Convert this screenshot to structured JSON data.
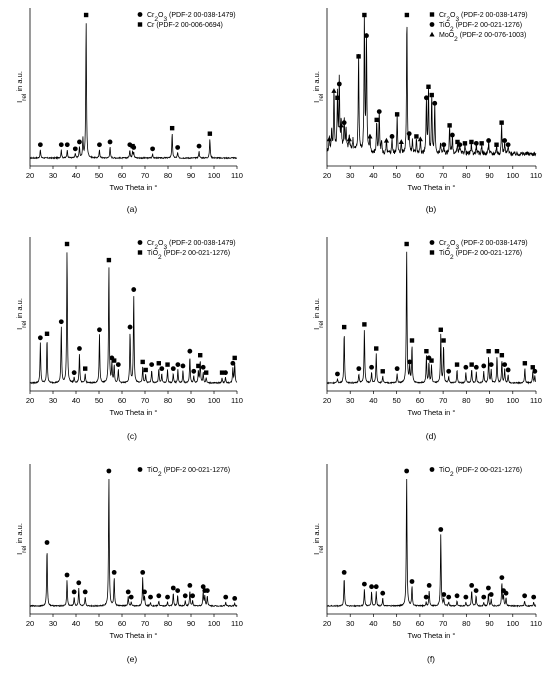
{
  "chart_data": [
    {
      "type": "line",
      "panel_label": "(a)",
      "xlabel": "Two Theta in °",
      "ylabel_main": "I",
      "ylabel_sub": "rel",
      "ylabel_tail": " in a.u.",
      "xlim": [
        20,
        110
      ],
      "xticks": [
        20,
        30,
        40,
        50,
        60,
        70,
        80,
        90,
        100,
        110
      ],
      "ylim": [
        0,
        100
      ],
      "legend": [
        {
          "marker": "circle",
          "pre": "Cr",
          "sub1": "2",
          "mid": "O",
          "sub2": "3",
          "post": " (PDF-2 00-038-1479)"
        },
        {
          "marker": "square",
          "pre": "Cr (PDF-2 00-006-0694)",
          "sub1": "",
          "mid": "",
          "sub2": "",
          "post": ""
        }
      ],
      "peaks": [
        {
          "x": 24.5,
          "y": 6,
          "m": "circle"
        },
        {
          "x": 33.6,
          "y": 6,
          "m": "circle"
        },
        {
          "x": 36.2,
          "y": 6,
          "m": "circle"
        },
        {
          "x": 39.7,
          "y": 3,
          "m": "circle"
        },
        {
          "x": 41.5,
          "y": 8,
          "m": "circle"
        },
        {
          "x": 43.0,
          "y": 14,
          "m": "none"
        },
        {
          "x": 44.4,
          "y": 100,
          "m": "square"
        },
        {
          "x": 50.2,
          "y": 6,
          "m": "circle"
        },
        {
          "x": 54.8,
          "y": 8,
          "m": "circle"
        },
        {
          "x": 63.4,
          "y": 6,
          "m": "circle"
        },
        {
          "x": 64.6,
          "y": 5,
          "m": "square"
        },
        {
          "x": 65.1,
          "y": 4,
          "m": "circle"
        },
        {
          "x": 73.3,
          "y": 3,
          "m": "circle"
        },
        {
          "x": 81.8,
          "y": 18,
          "m": "square"
        },
        {
          "x": 84.2,
          "y": 4,
          "m": "circle"
        },
        {
          "x": 93.5,
          "y": 5,
          "m": "circle"
        },
        {
          "x": 98.2,
          "y": 14,
          "m": "square"
        }
      ]
    },
    {
      "type": "line",
      "panel_label": "(b)",
      "xlabel": "Two Theta in °",
      "ylabel_main": "I",
      "ylabel_sub": "rel",
      "ylabel_tail": " in a.u.",
      "xlim": [
        20,
        110
      ],
      "xticks": [
        20,
        30,
        40,
        50,
        60,
        70,
        80,
        90,
        100,
        110
      ],
      "ylim": [
        0,
        100
      ],
      "legend": [
        {
          "marker": "square",
          "pre": "Cr",
          "sub1": "2",
          "mid": "O",
          "sub2": "3",
          "post": " (PDF-2 00-038-1479)"
        },
        {
          "marker": "circle",
          "pre": "TiO",
          "sub1": "2",
          "mid": "",
          "sub2": "",
          "post": " (PDF-2 00-021-1276)"
        },
        {
          "marker": "triangle",
          "pre": "MoO",
          "sub1": "2",
          "mid": "",
          "sub2": "",
          "post": " (PDF-2 00-076-1003)"
        }
      ],
      "peaks": [
        {
          "x": 21.0,
          "y": 10,
          "m": "triangle"
        },
        {
          "x": 22.0,
          "y": 14,
          "m": "none"
        },
        {
          "x": 23.0,
          "y": 45,
          "m": "triangle"
        },
        {
          "x": 24.5,
          "y": 40,
          "m": "square"
        },
        {
          "x": 25.3,
          "y": 50,
          "m": "circle"
        },
        {
          "x": 26.1,
          "y": 20,
          "m": "triangle"
        },
        {
          "x": 27.4,
          "y": 22,
          "m": "circle"
        },
        {
          "x": 28.2,
          "y": 14,
          "m": "none"
        },
        {
          "x": 29.6,
          "y": 10,
          "m": "triangle"
        },
        {
          "x": 31.2,
          "y": 8,
          "m": "none"
        },
        {
          "x": 33.6,
          "y": 70,
          "m": "square"
        },
        {
          "x": 36.1,
          "y": 100,
          "m": "square"
        },
        {
          "x": 37.0,
          "y": 85,
          "m": "circle"
        },
        {
          "x": 38.5,
          "y": 12,
          "m": "triangle"
        },
        {
          "x": 41.4,
          "y": 24,
          "m": "square"
        },
        {
          "x": 42.5,
          "y": 30,
          "m": "circle"
        },
        {
          "x": 43.5,
          "y": 10,
          "m": "none"
        },
        {
          "x": 45.6,
          "y": 9,
          "m": "triangle"
        },
        {
          "x": 48.0,
          "y": 12,
          "m": "circle"
        },
        {
          "x": 50.2,
          "y": 28,
          "m": "square"
        },
        {
          "x": 52.0,
          "y": 8,
          "m": "triangle"
        },
        {
          "x": 54.4,
          "y": 100,
          "m": "square"
        },
        {
          "x": 55.4,
          "y": 14,
          "m": "circle"
        },
        {
          "x": 56.8,
          "y": 10,
          "m": "none"
        },
        {
          "x": 58.5,
          "y": 12,
          "m": "square"
        },
        {
          "x": 60.2,
          "y": 10,
          "m": "triangle"
        },
        {
          "x": 62.8,
          "y": 40,
          "m": "circle"
        },
        {
          "x": 63.7,
          "y": 48,
          "m": "square"
        },
        {
          "x": 65.1,
          "y": 42,
          "m": "square"
        },
        {
          "x": 66.4,
          "y": 36,
          "m": "circle"
        },
        {
          "x": 68.9,
          "y": 8,
          "m": "none"
        },
        {
          "x": 70.3,
          "y": 6,
          "m": "circle"
        },
        {
          "x": 72.8,
          "y": 20,
          "m": "square"
        },
        {
          "x": 74.0,
          "y": 13,
          "m": "circle"
        },
        {
          "x": 76.2,
          "y": 8,
          "m": "square"
        },
        {
          "x": 77.2,
          "y": 6,
          "m": "circle"
        },
        {
          "x": 79.4,
          "y": 7,
          "m": "square"
        },
        {
          "x": 82.2,
          "y": 8,
          "m": "square"
        },
        {
          "x": 84.3,
          "y": 7,
          "m": "circle"
        },
        {
          "x": 86.6,
          "y": 7,
          "m": "square"
        },
        {
          "x": 89.6,
          "y": 9,
          "m": "circle"
        },
        {
          "x": 93.0,
          "y": 6,
          "m": "square"
        },
        {
          "x": 95.2,
          "y": 22,
          "m": "square"
        },
        {
          "x": 96.5,
          "y": 9,
          "m": "circle"
        },
        {
          "x": 98.0,
          "y": 6,
          "m": "circle"
        }
      ]
    },
    {
      "type": "line",
      "panel_label": "(c)",
      "xlabel": "Two Theta in °",
      "ylabel_main": "I",
      "ylabel_sub": "rel",
      "ylabel_tail": " in a.u.",
      "xlim": [
        20,
        110
      ],
      "xticks": [
        20,
        30,
        40,
        50,
        60,
        70,
        80,
        90,
        100,
        110
      ],
      "ylim": [
        0,
        100
      ],
      "legend": [
        {
          "marker": "circle",
          "pre": "Cr",
          "sub1": "2",
          "mid": "O",
          "sub2": "3",
          "post": " (PDF-2 00-038-1479)"
        },
        {
          "marker": "square",
          "pre": "TiO",
          "sub1": "2",
          "mid": "",
          "sub2": "",
          "post": " (PDF-2 00-021-1276)"
        }
      ],
      "peaks": [
        {
          "x": 24.5,
          "y": 30,
          "m": "circle"
        },
        {
          "x": 27.4,
          "y": 33,
          "m": "square"
        },
        {
          "x": 33.6,
          "y": 42,
          "m": "circle"
        },
        {
          "x": 36.1,
          "y": 100,
          "m": "square"
        },
        {
          "x": 39.2,
          "y": 4,
          "m": "circle"
        },
        {
          "x": 41.5,
          "y": 22,
          "m": "circle"
        },
        {
          "x": 44.0,
          "y": 7,
          "m": "square"
        },
        {
          "x": 50.2,
          "y": 36,
          "m": "circle"
        },
        {
          "x": 54.3,
          "y": 88,
          "m": "square"
        },
        {
          "x": 55.6,
          "y": 15,
          "m": "circle"
        },
        {
          "x": 56.6,
          "y": 13,
          "m": "square"
        },
        {
          "x": 58.4,
          "y": 10,
          "m": "circle"
        },
        {
          "x": 63.5,
          "y": 38,
          "m": "circle"
        },
        {
          "x": 65.1,
          "y": 66,
          "m": "circle"
        },
        {
          "x": 69.0,
          "y": 12,
          "m": "square"
        },
        {
          "x": 70.3,
          "y": 6,
          "m": "square"
        },
        {
          "x": 72.9,
          "y": 10,
          "m": "circle"
        },
        {
          "x": 76.0,
          "y": 11,
          "m": "square"
        },
        {
          "x": 77.3,
          "y": 7,
          "m": "circle"
        },
        {
          "x": 79.8,
          "y": 10,
          "m": "square"
        },
        {
          "x": 82.3,
          "y": 7,
          "m": "circle"
        },
        {
          "x": 84.3,
          "y": 10,
          "m": "circle"
        },
        {
          "x": 86.5,
          "y": 9,
          "m": "circle"
        },
        {
          "x": 89.5,
          "y": 20,
          "m": "circle"
        },
        {
          "x": 91.2,
          "y": 5,
          "m": "circle"
        },
        {
          "x": 93.2,
          "y": 9,
          "m": "square"
        },
        {
          "x": 94.0,
          "y": 17,
          "m": "square"
        },
        {
          "x": 95.3,
          "y": 8,
          "m": "circle"
        },
        {
          "x": 96.6,
          "y": 4,
          "m": "square"
        },
        {
          "x": 103.5,
          "y": 4,
          "m": "square"
        },
        {
          "x": 105.0,
          "y": 4,
          "m": "circle"
        },
        {
          "x": 108.2,
          "y": 11,
          "m": "circle"
        },
        {
          "x": 109.0,
          "y": 15,
          "m": "square"
        }
      ]
    },
    {
      "type": "line",
      "panel_label": "(d)",
      "xlabel": "Two Theta in °",
      "ylabel_main": "I",
      "ylabel_sub": "rel",
      "ylabel_tail": " in a.u.",
      "xlim": [
        20,
        110
      ],
      "xticks": [
        20,
        30,
        40,
        50,
        60,
        70,
        80,
        90,
        100,
        110
      ],
      "ylim": [
        0,
        100
      ],
      "legend": [
        {
          "marker": "circle",
          "pre": "Cr",
          "sub1": "2",
          "mid": "O",
          "sub2": "3",
          "post": " (PDF-2 00-038-1479)"
        },
        {
          "marker": "square",
          "pre": "TiO",
          "sub1": "2",
          "mid": "",
          "sub2": "",
          "post": " (PDF-2 00-021-1276)"
        }
      ],
      "peaks": [
        {
          "x": 24.5,
          "y": 3,
          "m": "circle"
        },
        {
          "x": 27.4,
          "y": 38,
          "m": "square"
        },
        {
          "x": 33.7,
          "y": 7,
          "m": "circle"
        },
        {
          "x": 36.1,
          "y": 40,
          "m": "square"
        },
        {
          "x": 39.2,
          "y": 8,
          "m": "circle"
        },
        {
          "x": 41.2,
          "y": 22,
          "m": "square"
        },
        {
          "x": 44.0,
          "y": 5,
          "m": "square"
        },
        {
          "x": 50.2,
          "y": 7,
          "m": "circle"
        },
        {
          "x": 54.3,
          "y": 100,
          "m": "square"
        },
        {
          "x": 55.6,
          "y": 12,
          "m": "circle"
        },
        {
          "x": 56.6,
          "y": 28,
          "m": "square"
        },
        {
          "x": 62.8,
          "y": 20,
          "m": "square"
        },
        {
          "x": 63.9,
          "y": 15,
          "m": "circle"
        },
        {
          "x": 65.0,
          "y": 13,
          "m": "square"
        },
        {
          "x": 69.0,
          "y": 36,
          "m": "square"
        },
        {
          "x": 70.2,
          "y": 28,
          "m": "square"
        },
        {
          "x": 72.4,
          "y": 5,
          "m": "circle"
        },
        {
          "x": 76.0,
          "y": 10,
          "m": "square"
        },
        {
          "x": 79.8,
          "y": 8,
          "m": "circle"
        },
        {
          "x": 82.3,
          "y": 10,
          "m": "square"
        },
        {
          "x": 84.3,
          "y": 8,
          "m": "circle"
        },
        {
          "x": 87.5,
          "y": 9,
          "m": "circle"
        },
        {
          "x": 89.6,
          "y": 20,
          "m": "square"
        },
        {
          "x": 90.7,
          "y": 10,
          "m": "circle"
        },
        {
          "x": 93.2,
          "y": 20,
          "m": "square"
        },
        {
          "x": 95.3,
          "y": 17,
          "m": "square"
        },
        {
          "x": 96.5,
          "y": 10,
          "m": "circle"
        },
        {
          "x": 98.0,
          "y": 6,
          "m": "circle"
        },
        {
          "x": 105.2,
          "y": 11,
          "m": "square"
        },
        {
          "x": 108.6,
          "y": 8,
          "m": "square"
        },
        {
          "x": 109.5,
          "y": 5,
          "m": "circle"
        }
      ]
    },
    {
      "type": "line",
      "panel_label": "(e)",
      "xlabel": "Two Theta in °",
      "ylabel_main": "I",
      "ylabel_sub": "rel",
      "ylabel_tail": " in a.u.",
      "xlim": [
        20,
        110
      ],
      "xticks": [
        20,
        30,
        40,
        50,
        60,
        70,
        80,
        90,
        100,
        110
      ],
      "ylim": [
        0,
        100
      ],
      "legend": [
        {
          "marker": "circle",
          "pre": "TiO",
          "sub1": "2",
          "mid": "",
          "sub2": "",
          "post": " (PDF-2 00-021-1276)"
        }
      ],
      "peaks": [
        {
          "x": 27.4,
          "y": 45,
          "m": "circle"
        },
        {
          "x": 36.1,
          "y": 20,
          "m": "circle"
        },
        {
          "x": 39.2,
          "y": 7,
          "m": "circle"
        },
        {
          "x": 41.2,
          "y": 14,
          "m": "circle"
        },
        {
          "x": 44.0,
          "y": 7,
          "m": "circle"
        },
        {
          "x": 54.3,
          "y": 100,
          "m": "circle"
        },
        {
          "x": 56.6,
          "y": 22,
          "m": "circle"
        },
        {
          "x": 62.7,
          "y": 7,
          "m": "circle"
        },
        {
          "x": 64.0,
          "y": 3,
          "m": "circle"
        },
        {
          "x": 69.0,
          "y": 22,
          "m": "circle"
        },
        {
          "x": 69.8,
          "y": 7,
          "m": "circle"
        },
        {
          "x": 72.4,
          "y": 3,
          "m": "circle"
        },
        {
          "x": 76.0,
          "y": 4,
          "m": "circle"
        },
        {
          "x": 79.8,
          "y": 3,
          "m": "circle"
        },
        {
          "x": 82.3,
          "y": 10,
          "m": "circle"
        },
        {
          "x": 84.2,
          "y": 8,
          "m": "circle"
        },
        {
          "x": 87.5,
          "y": 4,
          "m": "circle"
        },
        {
          "x": 89.5,
          "y": 12,
          "m": "circle"
        },
        {
          "x": 90.7,
          "y": 4,
          "m": "circle"
        },
        {
          "x": 95.3,
          "y": 11,
          "m": "circle"
        },
        {
          "x": 96.0,
          "y": 8,
          "m": "circle"
        },
        {
          "x": 97.1,
          "y": 8,
          "m": "circle"
        },
        {
          "x": 105.1,
          "y": 3,
          "m": "circle"
        },
        {
          "x": 109.0,
          "y": 2,
          "m": "circle"
        }
      ]
    },
    {
      "type": "line",
      "panel_label": "(f)",
      "xlabel": "Two Theta in °",
      "ylabel_main": "I",
      "ylabel_sub": "rel",
      "ylabel_tail": " in a.u.",
      "xlim": [
        20,
        110
      ],
      "xticks": [
        20,
        30,
        40,
        50,
        60,
        70,
        80,
        90,
        100,
        110
      ],
      "ylim": [
        0,
        100
      ],
      "legend": [
        {
          "marker": "circle",
          "pre": "TiO",
          "sub1": "2",
          "mid": "",
          "sub2": "",
          "post": " (PDF-2 00-021-1276)"
        }
      ],
      "peaks": [
        {
          "x": 27.4,
          "y": 22,
          "m": "circle"
        },
        {
          "x": 36.1,
          "y": 13,
          "m": "circle"
        },
        {
          "x": 39.2,
          "y": 11,
          "m": "circle"
        },
        {
          "x": 41.2,
          "y": 11,
          "m": "circle"
        },
        {
          "x": 44.0,
          "y": 6,
          "m": "circle"
        },
        {
          "x": 54.3,
          "y": 100,
          "m": "circle"
        },
        {
          "x": 56.6,
          "y": 15,
          "m": "circle"
        },
        {
          "x": 62.7,
          "y": 3,
          "m": "circle"
        },
        {
          "x": 64.0,
          "y": 12,
          "m": "circle"
        },
        {
          "x": 69.0,
          "y": 55,
          "m": "circle"
        },
        {
          "x": 70.3,
          "y": 5,
          "m": "circle"
        },
        {
          "x": 72.4,
          "y": 3,
          "m": "circle"
        },
        {
          "x": 76.0,
          "y": 4,
          "m": "circle"
        },
        {
          "x": 79.8,
          "y": 3,
          "m": "circle"
        },
        {
          "x": 82.3,
          "y": 12,
          "m": "circle"
        },
        {
          "x": 84.2,
          "y": 8,
          "m": "circle"
        },
        {
          "x": 87.5,
          "y": 3,
          "m": "circle"
        },
        {
          "x": 89.5,
          "y": 10,
          "m": "circle"
        },
        {
          "x": 90.7,
          "y": 5,
          "m": "circle"
        },
        {
          "x": 95.3,
          "y": 18,
          "m": "circle"
        },
        {
          "x": 96.0,
          "y": 8,
          "m": "circle"
        },
        {
          "x": 97.1,
          "y": 6,
          "m": "circle"
        },
        {
          "x": 105.1,
          "y": 4,
          "m": "circle"
        },
        {
          "x": 109.0,
          "y": 3,
          "m": "circle"
        }
      ]
    }
  ]
}
